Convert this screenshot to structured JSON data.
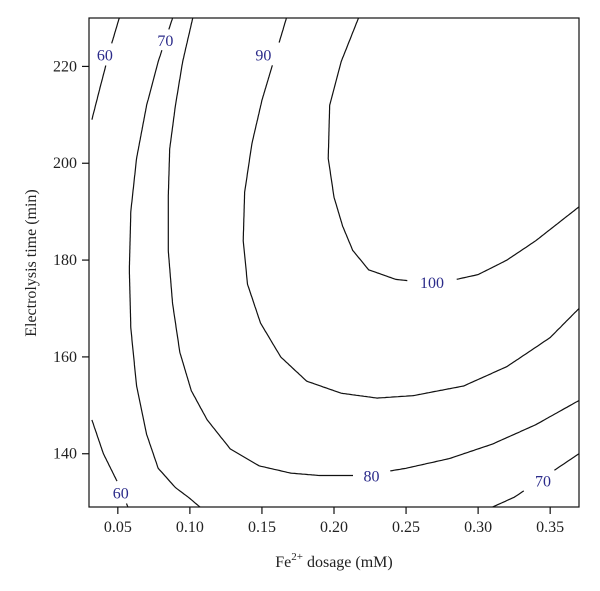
{
  "chart_data": {
    "type": "contour",
    "title": "",
    "xlabel": {
      "base": "Fe",
      "sup": "2+",
      "rest": " dosage (mM)"
    },
    "ylabel": "Electrolysis time (min)",
    "xlim": [
      0.03,
      0.37
    ],
    "ylim": [
      129,
      230
    ],
    "xticks": [
      0.05,
      0.1,
      0.15,
      0.2,
      0.25,
      0.3,
      0.35
    ],
    "xtick_labels": [
      "0.05",
      "0.10",
      "0.15",
      "0.20",
      "0.25",
      "0.30",
      "0.35"
    ],
    "yticks": [
      140,
      160,
      180,
      200,
      220
    ],
    "ytick_labels": [
      "140",
      "160",
      "180",
      "200",
      "220"
    ],
    "line_color": "#111111",
    "label_color": "#2b2b8a",
    "contours": [
      {
        "level": "60",
        "points": [
          [
            0.032,
            209
          ],
          [
            0.038,
            216
          ],
          [
            0.045,
            224
          ],
          [
            0.051,
            230
          ]
        ],
        "label": {
          "text": "60",
          "at": [
            0.041,
            222.5
          ]
        }
      },
      {
        "level": "70",
        "points": [
          [
            0.088,
            230
          ],
          [
            0.078,
            221
          ],
          [
            0.07,
            212
          ],
          [
            0.063,
            201
          ],
          [
            0.059,
            190
          ],
          [
            0.058,
            178
          ],
          [
            0.059,
            166
          ],
          [
            0.063,
            154
          ],
          [
            0.07,
            144
          ],
          [
            0.078,
            137
          ],
          [
            0.09,
            133
          ],
          [
            0.099,
            131
          ],
          [
            0.107,
            129
          ]
        ],
        "label": {
          "text": "70",
          "at": [
            0.083,
            225.5
          ]
        }
      },
      {
        "level": "90",
        "points": [
          [
            0.167,
            230
          ],
          [
            0.158,
            221
          ],
          [
            0.15,
            213
          ],
          [
            0.143,
            204
          ],
          [
            0.138,
            194
          ],
          [
            0.137,
            184
          ],
          [
            0.14,
            175
          ],
          [
            0.149,
            167
          ],
          [
            0.163,
            160
          ],
          [
            0.181,
            155
          ],
          [
            0.205,
            152.5
          ],
          [
            0.23,
            151.5
          ],
          [
            0.255,
            152
          ],
          [
            0.29,
            154
          ],
          [
            0.32,
            158
          ],
          [
            0.35,
            164
          ],
          [
            0.37,
            170
          ]
        ],
        "label": {
          "text": "90",
          "at": [
            0.151,
            222.5
          ]
        }
      },
      {
        "level": "100",
        "points": [
          [
            0.217,
            230
          ],
          [
            0.205,
            221
          ],
          [
            0.197,
            212
          ],
          [
            0.196,
            201
          ],
          [
            0.2,
            193
          ],
          [
            0.206,
            187
          ],
          [
            0.213,
            182
          ],
          [
            0.224,
            178
          ],
          [
            0.243,
            176
          ],
          [
            0.26,
            175.5
          ],
          [
            0.277,
            175.5
          ],
          [
            0.3,
            177
          ],
          [
            0.32,
            180
          ],
          [
            0.34,
            184
          ],
          [
            0.37,
            191
          ]
        ],
        "label": {
          "text": "100",
          "at": [
            0.268,
            175.5
          ]
        }
      },
      {
        "level": "80",
        "points": [
          [
            0.102,
            230
          ],
          [
            0.095,
            221
          ],
          [
            0.09,
            212
          ],
          [
            0.086,
            203
          ],
          [
            0.085,
            193
          ],
          [
            0.085,
            182
          ],
          [
            0.088,
            171
          ],
          [
            0.093,
            161
          ],
          [
            0.101,
            153
          ],
          [
            0.112,
            147
          ],
          [
            0.128,
            141
          ],
          [
            0.148,
            137.5
          ],
          [
            0.17,
            136
          ],
          [
            0.19,
            135.5
          ],
          [
            0.22,
            135.5
          ],
          [
            0.25,
            137
          ],
          [
            0.28,
            139
          ],
          [
            0.31,
            142
          ],
          [
            0.34,
            146
          ],
          [
            0.37,
            151
          ]
        ],
        "label": {
          "text": "80",
          "at": [
            0.226,
            135.5
          ]
        }
      },
      {
        "level": "60",
        "points": [
          [
            0.032,
            147
          ],
          [
            0.04,
            140
          ],
          [
            0.05,
            134
          ],
          [
            0.057,
            129
          ]
        ],
        "label": {
          "text": "60",
          "at": [
            0.052,
            132
          ]
        }
      },
      {
        "level": "70",
        "points": [
          [
            0.31,
            129
          ],
          [
            0.325,
            131
          ],
          [
            0.345,
            135
          ],
          [
            0.37,
            140
          ]
        ],
        "label": {
          "text": "70",
          "at": [
            0.345,
            134.5
          ]
        }
      }
    ]
  }
}
